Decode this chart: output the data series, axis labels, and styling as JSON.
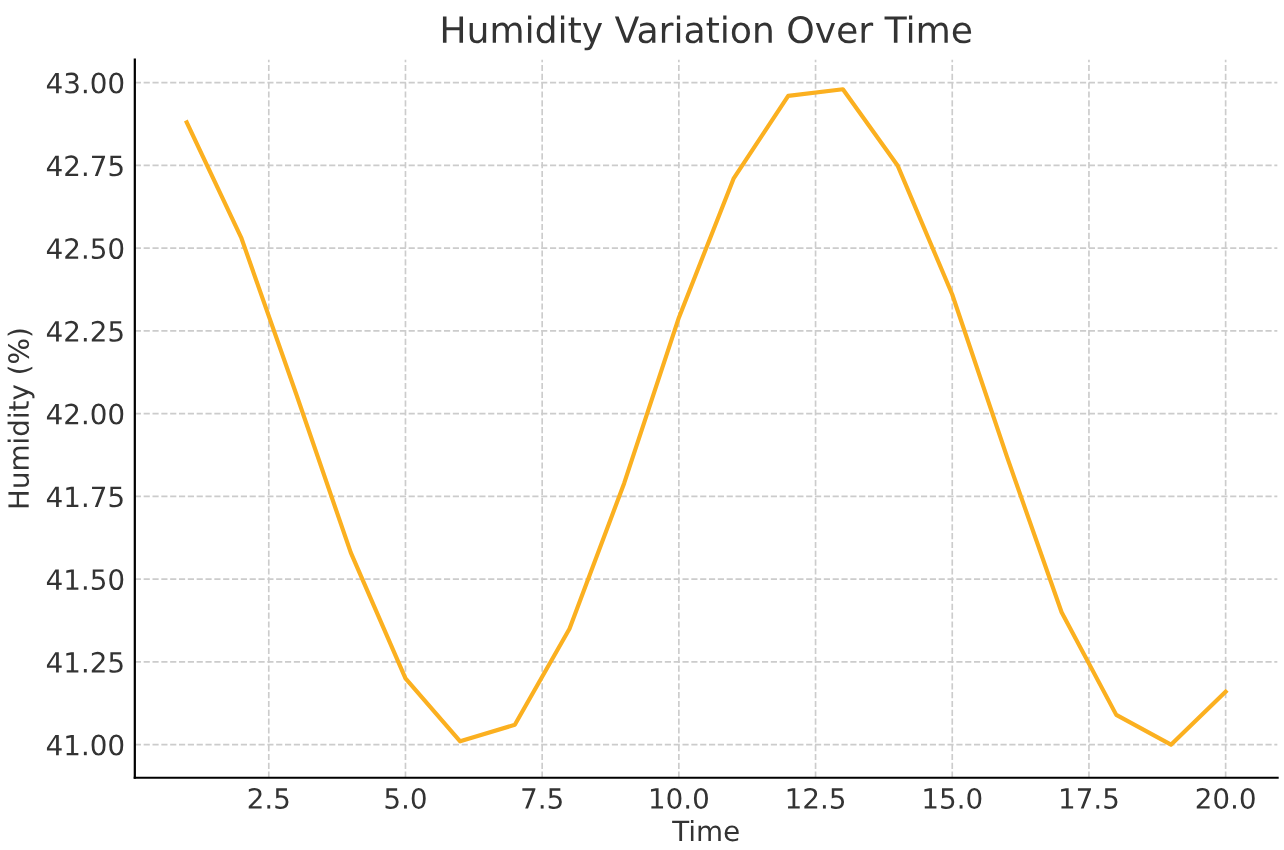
{
  "chart_data": {
    "type": "line",
    "title": "Humidity Variation Over Time",
    "xlabel": "Time",
    "ylabel": "Humidity (%)",
    "x": [
      1,
      2,
      3,
      4,
      5,
      6,
      7,
      8,
      9,
      10,
      11,
      12,
      13,
      14,
      15,
      16,
      17,
      18,
      19,
      20
    ],
    "series": [
      {
        "color": "#fbb020",
        "values": [
          42.88,
          42.53,
          42.06,
          41.58,
          41.2,
          41.01,
          41.06,
          41.35,
          41.79,
          42.29,
          42.71,
          42.96,
          42.98,
          42.75,
          42.36,
          41.87,
          41.4,
          41.09,
          41.0,
          41.16
        ]
      }
    ],
    "xlim": [
      0.05,
      20.95
    ],
    "ylim": [
      40.9,
      43.07
    ],
    "xticks": [
      {
        "value": 2.5,
        "label": "2.5"
      },
      {
        "value": 5,
        "label": "5.0"
      },
      {
        "value": 7.5,
        "label": "7.5"
      },
      {
        "value": 10,
        "label": "10.0"
      },
      {
        "value": 12.5,
        "label": "12.5"
      },
      {
        "value": 15,
        "label": "15.0"
      },
      {
        "value": 17.5,
        "label": "17.5"
      },
      {
        "value": 20,
        "label": "20.0"
      }
    ],
    "yticks": [
      {
        "value": 41,
        "label": "41.00"
      },
      {
        "value": 41.25,
        "label": "41.25"
      },
      {
        "value": 41.5,
        "label": "41.50"
      },
      {
        "value": 41.75,
        "label": "41.75"
      },
      {
        "value": 42,
        "label": "42.00"
      },
      {
        "value": 42.25,
        "label": "42.25"
      },
      {
        "value": 42.5,
        "label": "42.50"
      },
      {
        "value": 42.75,
        "label": "42.75"
      },
      {
        "value": 43,
        "label": "43.00"
      }
    ],
    "grid": true,
    "line_style": "solid"
  }
}
